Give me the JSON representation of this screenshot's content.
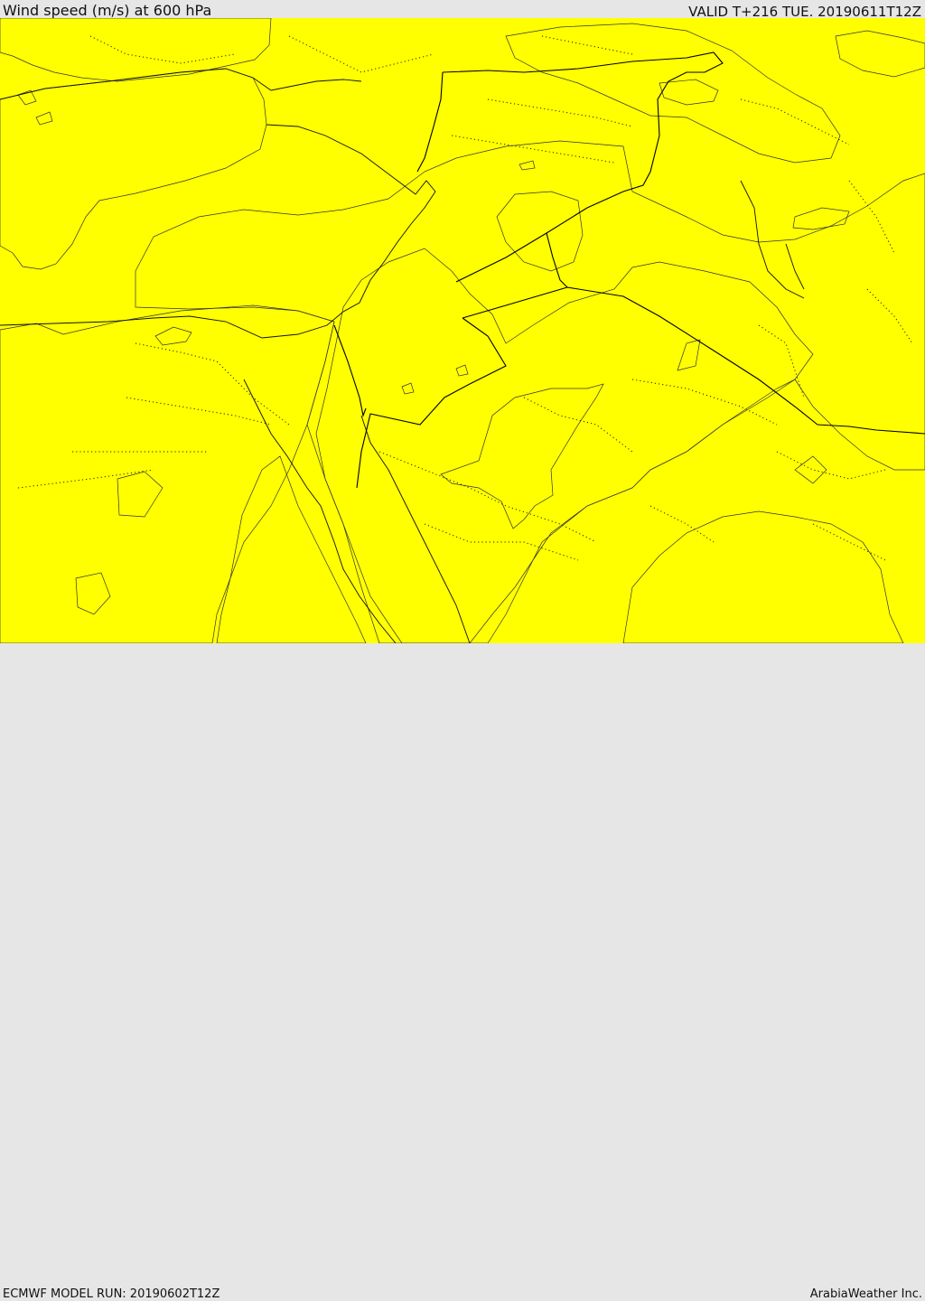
{
  "header": {
    "title": "Wind speed (m/s) at 600 hPa",
    "valid": "VALID T+216 TUE. 20190611T12Z"
  },
  "footer": {
    "model_run": "ECMWF MODEL RUN: 20190602T12Z",
    "credit": "ArabiaWeather Inc."
  },
  "colors": {
    "sea": "#ffffff",
    "level_0_light": "#ffe0a8",
    "level_1": "#ffff00",
    "level_2": "#ffe000",
    "level_3": "#ffbf00",
    "level_4": "#ff9f00"
  }
}
